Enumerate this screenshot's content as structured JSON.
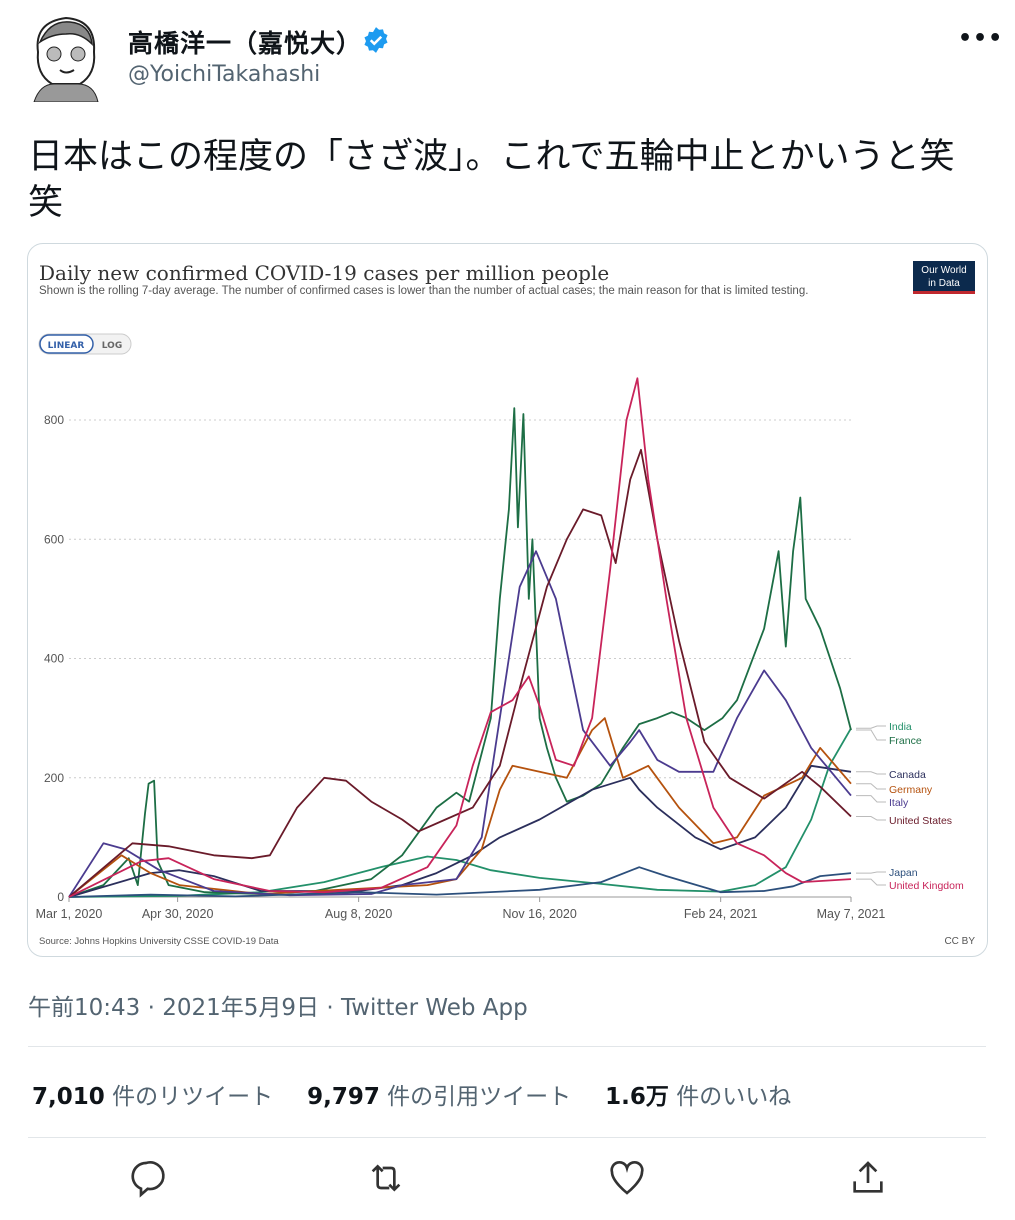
{
  "user": {
    "name": "高橋洋一（嘉悦大）",
    "handle": "@YoichiTakahashi",
    "verified": true
  },
  "more_icon": "more-horizontal-icon",
  "tweet": {
    "text": "日本はこの程度の「さざ波」。これで五輪中止とかいうと笑笑",
    "meta": "午前10:43 · 2021年5月9日 · Twitter Web App"
  },
  "stats": [
    {
      "count": "7,010",
      "label": "件のリツイート"
    },
    {
      "count": "9,797",
      "label": "件の引用ツイート"
    },
    {
      "count": "1.6万",
      "label": "件のいいね"
    }
  ],
  "actions": [
    "reply-icon",
    "retweet-icon",
    "like-icon",
    "share-icon"
  ],
  "colors": {
    "accent": "#1d9bf0",
    "text": "#0f1419",
    "muted": "#536471"
  },
  "chart_data": {
    "type": "line",
    "title": "Daily new confirmed COVID-19 cases per million people",
    "subtitle": "Shown is the rolling 7-day average. The number of confirmed cases is lower than the number of actual cases; the main reason for that is limited testing.",
    "logo": "Our World in Data",
    "scale_toggle": {
      "options": [
        "LINEAR",
        "LOG"
      ],
      "selected": "LINEAR"
    },
    "source": "Source: Johns Hopkins University CSSE COVID-19 Data",
    "license": "CC BY",
    "xlim": [
      "2020-03-01",
      "2021-05-07"
    ],
    "x_ticks": [
      {
        "date": "2020-03-01",
        "label": "Mar 1, 2020"
      },
      {
        "date": "2020-04-30",
        "label": "Apr 30, 2020"
      },
      {
        "date": "2020-08-08",
        "label": "Aug 8, 2020"
      },
      {
        "date": "2020-11-16",
        "label": "Nov 16, 2020"
      },
      {
        "date": "2021-02-24",
        "label": "Feb 24, 2021"
      },
      {
        "date": "2021-05-07",
        "label": "May 7, 2021"
      }
    ],
    "ylim": [
      0,
      880
    ],
    "y_ticks": [
      0,
      200,
      400,
      600,
      800
    ],
    "grid": "horizontal-dotted",
    "legend": "right-end-labels",
    "series": [
      {
        "name": "India",
        "color": "#23906a",
        "points": [
          [
            "2020-03-01",
            0
          ],
          [
            "2020-05-01",
            2
          ],
          [
            "2020-06-15",
            8
          ],
          [
            "2020-07-20",
            25
          ],
          [
            "2020-08-20",
            50
          ],
          [
            "2020-09-15",
            68
          ],
          [
            "2020-10-01",
            62
          ],
          [
            "2020-10-20",
            45
          ],
          [
            "2020-11-16",
            32
          ],
          [
            "2020-12-20",
            22
          ],
          [
            "2021-01-20",
            12
          ],
          [
            "2021-02-24",
            9
          ],
          [
            "2021-03-15",
            20
          ],
          [
            "2021-04-01",
            50
          ],
          [
            "2021-04-15",
            130
          ],
          [
            "2021-04-25",
            220
          ],
          [
            "2021-05-07",
            283
          ]
        ]
      },
      {
        "name": "France",
        "color": "#1d6e45",
        "points": [
          [
            "2020-03-01",
            0
          ],
          [
            "2020-03-20",
            20
          ],
          [
            "2020-04-03",
            65
          ],
          [
            "2020-04-08",
            20
          ],
          [
            "2020-04-12",
            140
          ],
          [
            "2020-04-14",
            190
          ],
          [
            "2020-04-17",
            195
          ],
          [
            "2020-04-19",
            60
          ],
          [
            "2020-04-25",
            20
          ],
          [
            "2020-05-15",
            8
          ],
          [
            "2020-06-15",
            5
          ],
          [
            "2020-07-15",
            10
          ],
          [
            "2020-08-15",
            30
          ],
          [
            "2020-09-01",
            70
          ],
          [
            "2020-09-20",
            150
          ],
          [
            "2020-10-01",
            175
          ],
          [
            "2020-10-08",
            160
          ],
          [
            "2020-10-20",
            300
          ],
          [
            "2020-10-25",
            500
          ],
          [
            "2020-10-30",
            650
          ],
          [
            "2020-11-02",
            820
          ],
          [
            "2020-11-04",
            620
          ],
          [
            "2020-11-07",
            810
          ],
          [
            "2020-11-10",
            500
          ],
          [
            "2020-11-12",
            600
          ],
          [
            "2020-11-16",
            300
          ],
          [
            "2020-11-20",
            250
          ],
          [
            "2020-11-25",
            200
          ],
          [
            "2020-12-01",
            160
          ],
          [
            "2020-12-10",
            170
          ],
          [
            "2020-12-20",
            190
          ],
          [
            "2021-01-01",
            250
          ],
          [
            "2021-01-10",
            290
          ],
          [
            "2021-01-20",
            300
          ],
          [
            "2021-01-28",
            310
          ],
          [
            "2021-02-05",
            300
          ],
          [
            "2021-02-15",
            280
          ],
          [
            "2021-02-25",
            300
          ],
          [
            "2021-03-05",
            330
          ],
          [
            "2021-03-20",
            450
          ],
          [
            "2021-03-28",
            580
          ],
          [
            "2021-04-01",
            420
          ],
          [
            "2021-04-05",
            580
          ],
          [
            "2021-04-09",
            670
          ],
          [
            "2021-04-12",
            500
          ],
          [
            "2021-04-20",
            450
          ],
          [
            "2021-05-01",
            350
          ],
          [
            "2021-05-07",
            280
          ]
        ]
      },
      {
        "name": "Canada",
        "color": "#2b2f5c",
        "points": [
          [
            "2020-03-01",
            0
          ],
          [
            "2020-04-15",
            40
          ],
          [
            "2020-05-01",
            45
          ],
          [
            "2020-05-20",
            35
          ],
          [
            "2020-06-15",
            10
          ],
          [
            "2020-08-08",
            10
          ],
          [
            "2020-09-01",
            20
          ],
          [
            "2020-09-20",
            40
          ],
          [
            "2020-10-10",
            70
          ],
          [
            "2020-10-25",
            100
          ],
          [
            "2020-11-16",
            130
          ],
          [
            "2020-12-15",
            180
          ],
          [
            "2021-01-05",
            200
          ],
          [
            "2021-01-10",
            180
          ],
          [
            "2021-01-20",
            150
          ],
          [
            "2021-02-10",
            100
          ],
          [
            "2021-02-24",
            80
          ],
          [
            "2021-03-15",
            100
          ],
          [
            "2021-04-01",
            150
          ],
          [
            "2021-04-15",
            220
          ],
          [
            "2021-05-07",
            210
          ]
        ]
      },
      {
        "name": "Germany",
        "color": "#b5520e",
        "points": [
          [
            "2020-03-01",
            0
          ],
          [
            "2020-03-30",
            70
          ],
          [
            "2020-04-15",
            40
          ],
          [
            "2020-05-01",
            20
          ],
          [
            "2020-06-15",
            5
          ],
          [
            "2020-08-15",
            15
          ],
          [
            "2020-09-15",
            20
          ],
          [
            "2020-10-01",
            30
          ],
          [
            "2020-10-15",
            80
          ],
          [
            "2020-10-25",
            180
          ],
          [
            "2020-11-01",
            220
          ],
          [
            "2020-11-16",
            210
          ],
          [
            "2020-12-01",
            200
          ],
          [
            "2020-12-15",
            280
          ],
          [
            "2020-12-22",
            300
          ],
          [
            "2021-01-01",
            200
          ],
          [
            "2021-01-15",
            220
          ],
          [
            "2021-02-01",
            150
          ],
          [
            "2021-02-20",
            90
          ],
          [
            "2021-03-05",
            100
          ],
          [
            "2021-03-20",
            170
          ],
          [
            "2021-04-10",
            200
          ],
          [
            "2021-04-20",
            250
          ],
          [
            "2021-05-07",
            190
          ]
        ]
      },
      {
        "name": "Italy",
        "color": "#4b3b8f",
        "points": [
          [
            "2020-03-01",
            0
          ],
          [
            "2020-03-20",
            90
          ],
          [
            "2020-04-01",
            80
          ],
          [
            "2020-04-20",
            45
          ],
          [
            "2020-05-20",
            10
          ],
          [
            "2020-07-01",
            3
          ],
          [
            "2020-08-15",
            5
          ],
          [
            "2020-09-01",
            20
          ],
          [
            "2020-10-01",
            30
          ],
          [
            "2020-10-15",
            100
          ],
          [
            "2020-10-25",
            300
          ],
          [
            "2020-11-05",
            520
          ],
          [
            "2020-11-14",
            580
          ],
          [
            "2020-11-25",
            500
          ],
          [
            "2020-12-10",
            280
          ],
          [
            "2020-12-25",
            220
          ],
          [
            "2021-01-05",
            260
          ],
          [
            "2021-01-10",
            280
          ],
          [
            "2021-01-20",
            230
          ],
          [
            "2021-02-01",
            210
          ],
          [
            "2021-02-20",
            210
          ],
          [
            "2021-03-05",
            300
          ],
          [
            "2021-03-20",
            380
          ],
          [
            "2021-04-01",
            330
          ],
          [
            "2021-04-15",
            250
          ],
          [
            "2021-05-07",
            170
          ]
        ]
      },
      {
        "name": "United States",
        "color": "#6a1b2a",
        "points": [
          [
            "2020-03-01",
            0
          ],
          [
            "2020-04-05",
            90
          ],
          [
            "2020-04-25",
            85
          ],
          [
            "2020-05-20",
            70
          ],
          [
            "2020-06-10",
            65
          ],
          [
            "2020-06-20",
            70
          ],
          [
            "2020-07-05",
            150
          ],
          [
            "2020-07-20",
            200
          ],
          [
            "2020-08-01",
            195
          ],
          [
            "2020-08-15",
            160
          ],
          [
            "2020-09-01",
            130
          ],
          [
            "2020-09-10",
            110
          ],
          [
            "2020-09-25",
            130
          ],
          [
            "2020-10-10",
            150
          ],
          [
            "2020-10-25",
            220
          ],
          [
            "2020-11-05",
            350
          ],
          [
            "2020-11-20",
            520
          ],
          [
            "2020-12-01",
            600
          ],
          [
            "2020-12-10",
            650
          ],
          [
            "2020-12-20",
            640
          ],
          [
            "2020-12-28",
            560
          ],
          [
            "2021-01-05",
            700
          ],
          [
            "2021-01-11",
            750
          ],
          [
            "2021-01-20",
            600
          ],
          [
            "2021-02-01",
            430
          ],
          [
            "2021-02-15",
            260
          ],
          [
            "2021-03-01",
            200
          ],
          [
            "2021-03-20",
            165
          ],
          [
            "2021-04-10",
            210
          ],
          [
            "2021-04-20",
            185
          ],
          [
            "2021-05-07",
            135
          ]
        ]
      },
      {
        "name": "Japan",
        "color": "#2c4f7c",
        "points": [
          [
            "2020-03-01",
            0
          ],
          [
            "2020-04-15",
            4
          ],
          [
            "2020-06-01",
            1
          ],
          [
            "2020-08-08",
            8
          ],
          [
            "2020-09-20",
            4
          ],
          [
            "2020-11-16",
            12
          ],
          [
            "2020-12-20",
            25
          ],
          [
            "2021-01-10",
            50
          ],
          [
            "2021-01-25",
            35
          ],
          [
            "2021-02-24",
            8
          ],
          [
            "2021-03-20",
            10
          ],
          [
            "2021-04-05",
            18
          ],
          [
            "2021-04-20",
            35
          ],
          [
            "2021-05-07",
            40
          ]
        ]
      },
      {
        "name": "United Kingdom",
        "color": "#c8245a",
        "points": [
          [
            "2020-03-01",
            0
          ],
          [
            "2020-04-10",
            60
          ],
          [
            "2020-04-25",
            65
          ],
          [
            "2020-05-20",
            30
          ],
          [
            "2020-06-20",
            10
          ],
          [
            "2020-07-20",
            8
          ],
          [
            "2020-08-20",
            15
          ],
          [
            "2020-09-15",
            50
          ],
          [
            "2020-10-01",
            120
          ],
          [
            "2020-10-10",
            220
          ],
          [
            "2020-10-20",
            310
          ],
          [
            "2020-11-01",
            330
          ],
          [
            "2020-11-10",
            370
          ],
          [
            "2020-11-16",
            320
          ],
          [
            "2020-11-25",
            230
          ],
          [
            "2020-12-05",
            220
          ],
          [
            "2020-12-15",
            300
          ],
          [
            "2020-12-25",
            550
          ],
          [
            "2021-01-03",
            800
          ],
          [
            "2021-01-09",
            870
          ],
          [
            "2021-01-15",
            700
          ],
          [
            "2021-01-25",
            500
          ],
          [
            "2021-02-05",
            300
          ],
          [
            "2021-02-20",
            150
          ],
          [
            "2021-03-05",
            90
          ],
          [
            "2021-03-20",
            70
          ],
          [
            "2021-04-01",
            40
          ],
          [
            "2021-04-10",
            25
          ],
          [
            "2021-05-07",
            30
          ]
        ]
      }
    ]
  }
}
